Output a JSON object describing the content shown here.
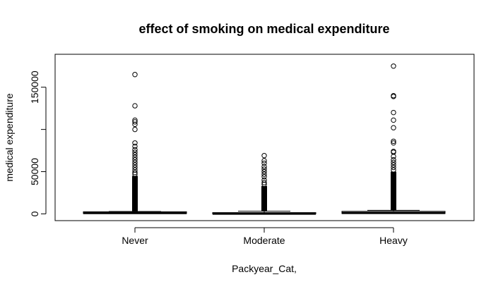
{
  "chart_data": {
    "type": "boxplot",
    "title": "effect of smoking on medical expenditure",
    "xlabel": "Packyear_Cat,",
    "ylabel": "medical expenditure",
    "categories": [
      "Never",
      "Moderate",
      "Heavy"
    ],
    "y_ticks": [
      0,
      50000,
      150000
    ],
    "y_tick_labels": [
      "0",
      "50000",
      "150000"
    ],
    "ylim": [
      -8000,
      189000
    ],
    "boxes": [
      {
        "category": "Never",
        "min": 0,
        "q1": 400,
        "median": 1000,
        "q3": 2500,
        "whisker_high": 2800,
        "dense_outlier_range": [
          2800,
          45000
        ],
        "outliers": [
          47000,
          49000,
          52000,
          55000,
          58000,
          61000,
          64000,
          67000,
          70000,
          73000,
          76000,
          80000,
          84000,
          100000,
          106000,
          109000,
          111000,
          128000,
          165000
        ]
      },
      {
        "category": "Moderate",
        "min": 0,
        "q1": 0,
        "median": 200,
        "q3": 1500,
        "whisker_high": 3200,
        "dense_outlier_range": [
          3200,
          33000
        ],
        "outliers": [
          35000,
          37000,
          40000,
          44000,
          47000,
          50000,
          53000,
          56000,
          60000,
          63000,
          69000
        ]
      },
      {
        "category": "Heavy",
        "min": 0,
        "q1": 400,
        "median": 1100,
        "q3": 3000,
        "whisker_high": 4200,
        "dense_outlier_range": [
          4200,
          50000
        ],
        "outliers": [
          52000,
          55000,
          58000,
          61000,
          64000,
          68000,
          73000,
          74000,
          84000,
          86000,
          102000,
          111000,
          120000,
          139000,
          140000,
          175000
        ]
      }
    ],
    "outlier_style": "open circles",
    "grid": false,
    "frame": "box"
  }
}
